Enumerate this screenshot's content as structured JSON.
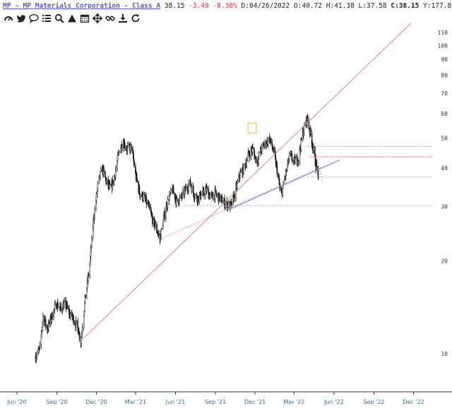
{
  "header": {
    "ticker": "MP - MP Materials Corporation - Class A",
    "last": "38.15",
    "change": "-3.49",
    "change_pct": "-8.38%",
    "date_label": "D:",
    "date": "04/26/2022",
    "open_label": "O:",
    "open": "40.72",
    "high_label": "H:",
    "high": "41.38",
    "low_label": "L:",
    "low": "37.58",
    "close_label": "C:",
    "close": "38.15",
    "year_label": "Y:",
    "year": "177.80"
  },
  "toolbar": {
    "icons": [
      "dashboard-icon",
      "twitter-icon",
      "comment-icon",
      "list-icon",
      "search-icon",
      "triangle-icon",
      "calendar-icon",
      "move-icon",
      "link-icon",
      "download-icon",
      "refresh-icon"
    ]
  },
  "colors": {
    "candle": "#111111",
    "trend_red": "#f08080",
    "trend_blue": "#6a6ae0",
    "dotted_green": "#66bb66",
    "dotted_red": "#e05050",
    "dotted_gray": "#999999",
    "box_orange": "#f5b942",
    "axis_text": "#333333",
    "date_text": "#2a6fb5"
  },
  "chart_data": {
    "type": "candlestick",
    "y_scale": "log",
    "ylim": [
      7.6,
      123
    ],
    "y_ticks": [
      10,
      20,
      30,
      40,
      50,
      60,
      70,
      80,
      90,
      100,
      110
    ],
    "x_ticks": [
      "Jun '20",
      "Sep '20",
      "Dec '20",
      "Mar '21",
      "Jun '21",
      "Sep '21",
      "Dec '21",
      "Mar '22",
      "Jun '22",
      "Sep '22",
      "Dec '22"
    ],
    "grid": false,
    "price_path": [
      [
        "2020-07-14",
        9.8
      ],
      [
        "2020-07-24",
        10.4
      ],
      [
        "2020-07-31",
        13.2
      ],
      [
        "2020-08-10",
        12.0
      ],
      [
        "2020-08-20",
        13.2
      ],
      [
        "2020-08-31",
        14.5
      ],
      [
        "2020-09-10",
        14.0
      ],
      [
        "2020-09-20",
        14.5
      ],
      [
        "2020-09-30",
        13.5
      ],
      [
        "2020-10-09",
        13.0
      ],
      [
        "2020-10-20",
        12.0
      ],
      [
        "2020-10-26",
        11.0
      ],
      [
        "2020-11-05",
        15.0
      ],
      [
        "2020-11-15",
        19.0
      ],
      [
        "2020-11-24",
        27.0
      ],
      [
        "2020-12-04",
        35.0
      ],
      [
        "2020-12-14",
        40.0
      ],
      [
        "2020-12-24",
        36.0
      ],
      [
        "2021-01-03",
        34.0
      ],
      [
        "2021-01-12",
        38.0
      ],
      [
        "2021-01-22",
        45.0
      ],
      [
        "2021-01-31",
        49.0
      ],
      [
        "2021-02-10",
        46.0
      ],
      [
        "2021-02-20",
        47.0
      ],
      [
        "2021-03-01",
        38.0
      ],
      [
        "2021-03-11",
        33.0
      ],
      [
        "2021-03-21",
        32.0
      ],
      [
        "2021-03-31",
        30.0
      ],
      [
        "2021-04-10",
        27.0
      ],
      [
        "2021-04-20",
        25.0
      ],
      [
        "2021-04-26",
        23.5
      ],
      [
        "2021-05-06",
        28.0
      ],
      [
        "2021-05-16",
        32.0
      ],
      [
        "2021-05-25",
        34.0
      ],
      [
        "2021-06-04",
        31.0
      ],
      [
        "2021-06-14",
        32.0
      ],
      [
        "2021-06-24",
        34.0
      ],
      [
        "2021-07-04",
        36.0
      ],
      [
        "2021-07-13",
        33.0
      ],
      [
        "2021-07-23",
        32.0
      ],
      [
        "2021-08-02",
        33.0
      ],
      [
        "2021-08-12",
        34.0
      ],
      [
        "2021-08-21",
        32.0
      ],
      [
        "2021-08-31",
        33.0
      ],
      [
        "2021-09-10",
        32.0
      ],
      [
        "2021-09-20",
        31.0
      ],
      [
        "2021-10-06",
        30.0
      ],
      [
        "2021-10-17",
        33.5
      ],
      [
        "2021-10-27",
        38.0
      ],
      [
        "2021-11-06",
        40.0
      ],
      [
        "2021-11-15",
        44.0
      ],
      [
        "2021-11-25",
        46.0
      ],
      [
        "2021-12-05",
        42.0
      ],
      [
        "2021-12-15",
        46.0
      ],
      [
        "2021-12-25",
        48.0
      ],
      [
        "2022-01-03",
        50.0
      ],
      [
        "2022-01-13",
        45.0
      ],
      [
        "2022-01-23",
        38.0
      ],
      [
        "2022-01-30",
        32.0
      ],
      [
        "2022-02-09",
        38.0
      ],
      [
        "2022-02-19",
        44.0
      ],
      [
        "2022-03-01",
        42.0
      ],
      [
        "2022-03-11",
        43.0
      ],
      [
        "2022-03-21",
        52.0
      ],
      [
        "2022-03-31",
        58.0
      ],
      [
        "2022-04-10",
        50.0
      ],
      [
        "2022-04-20",
        41.0
      ],
      [
        "2022-04-26",
        38.15
      ]
    ],
    "trendlines": [
      {
        "color": "trend_red",
        "style": "solid",
        "from": [
          "2020-10-26",
          11.0
        ],
        "to": [
          "2022-11-25",
          118.0
        ]
      },
      {
        "color": "trend_red",
        "style": "dotted",
        "from": [
          "2021-04-26",
          23.5
        ],
        "to": [
          "2022-05-06",
          40.5
        ]
      },
      {
        "color": "trend_blue",
        "style": "solid",
        "from": [
          "2021-10-06",
          29.5
        ],
        "to": [
          "2022-06-14",
          42.5
        ]
      },
      {
        "color": "dotted_gray",
        "style": "dotted",
        "from": [
          "2022-03-31",
          58.0
        ],
        "to": [
          "2022-05-06",
          36.0
        ]
      }
    ],
    "horizontal_levels": [
      {
        "value": 47.0,
        "color": "dotted_green",
        "from": "2022-04-01"
      },
      {
        "value": 43.5,
        "color": "dotted_red",
        "from": "2022-04-06"
      },
      {
        "value": 37.4,
        "color": "dotted_gray",
        "from": "2022-04-01"
      },
      {
        "value": 30.2,
        "color": "dotted_gray",
        "from": "2021-05-20"
      }
    ],
    "annotation_box": {
      "from": [
        "2021-11-15",
        56.0
      ],
      "to": [
        "2021-12-04",
        52.0
      ],
      "color": "box_orange"
    }
  }
}
